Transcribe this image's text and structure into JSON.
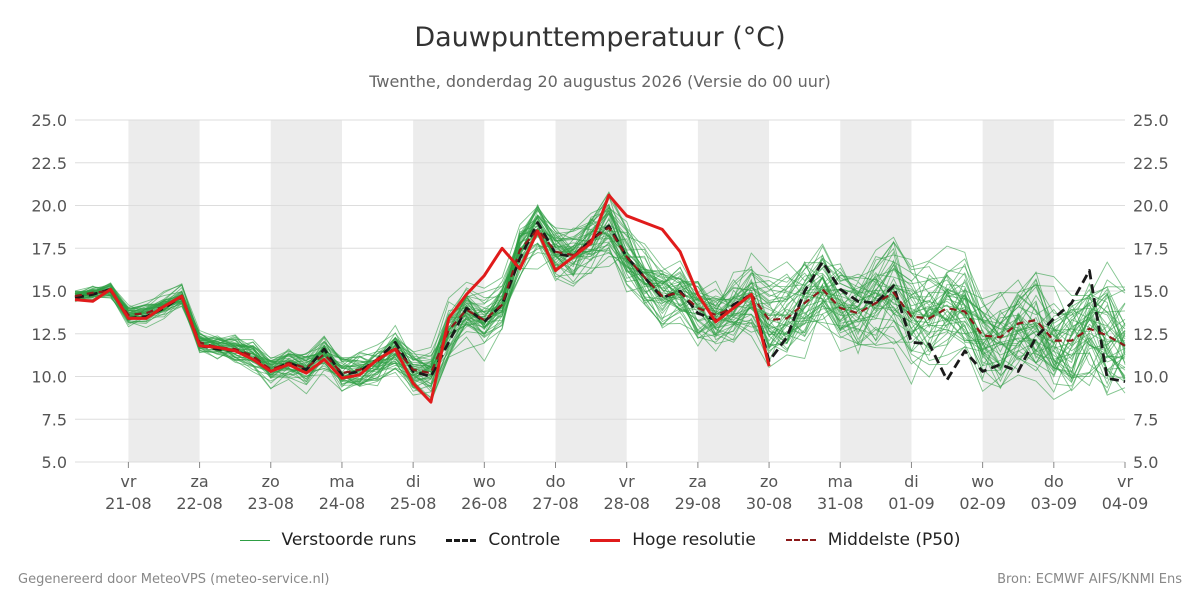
{
  "header": {
    "title": "Dauwpunttemperatuur (°C)",
    "subtitle": "Twenthe, donderdag 20 augustus 2026 (Versie do 00 uur)"
  },
  "footer": {
    "left": "Gegenereerd door MeteoVPS (meteo-service.nl)",
    "right": "Bron: ECMWF AIFS/KNMI Ens"
  },
  "colors": {
    "ensemble": "#2e9e44",
    "control": "#1a1a1a",
    "hires": "#e01b1b",
    "median": "#8b1a1a",
    "weekend_band": "#ececec",
    "grid": "#dddddd"
  },
  "legend": [
    {
      "label": "Verstoorde runs",
      "series": "ensemble"
    },
    {
      "label": "Controle",
      "series": "control"
    },
    {
      "label": "Hoge resolutie",
      "series": "hires"
    },
    {
      "label": "Middelste (P50)",
      "series": "median"
    }
  ],
  "chart_data": {
    "type": "line",
    "ylim": [
      5,
      25
    ],
    "yticks": [
      "5.0",
      "7.5",
      "10.0",
      "12.5",
      "15.0",
      "17.5",
      "20.0",
      "22.5",
      "25.0"
    ],
    "xlim_days": [
      -0.75,
      14.0
    ],
    "x_ticks": [
      {
        "day": "vr",
        "date": "21-08"
      },
      {
        "day": "za",
        "date": "22-08"
      },
      {
        "day": "zo",
        "date": "23-08"
      },
      {
        "day": "ma",
        "date": "24-08"
      },
      {
        "day": "di",
        "date": "25-08"
      },
      {
        "day": "wo",
        "date": "26-08"
      },
      {
        "day": "do",
        "date": "27-08"
      },
      {
        "day": "vr",
        "date": "28-08"
      },
      {
        "day": "za",
        "date": "29-08"
      },
      {
        "day": "zo",
        "date": "30-08"
      },
      {
        "day": "ma",
        "date": "31-08"
      },
      {
        "day": "di",
        "date": "01-09"
      },
      {
        "day": "wo",
        "date": "02-09"
      },
      {
        "day": "do",
        "date": "03-09"
      },
      {
        "day": "vr",
        "date": "04-09"
      }
    ],
    "shaded_days": [
      "21-08",
      "23-08",
      "25-08",
      "27-08",
      "29-08",
      "31-08",
      "02-09"
    ],
    "grid": true,
    "legend_position": "bottom",
    "series": [
      {
        "name": "Controle",
        "key": "control",
        "style": "dashed",
        "x": [
          -0.75,
          -0.5,
          -0.25,
          0,
          0.25,
          0.5,
          0.75,
          1,
          1.25,
          1.5,
          1.75,
          2,
          2.25,
          2.5,
          2.75,
          3,
          3.25,
          3.5,
          3.75,
          4,
          4.25,
          4.5,
          4.75,
          5,
          5.25,
          5.5,
          5.75,
          6,
          6.25,
          6.5,
          6.75,
          7,
          7.25,
          7.5,
          7.75,
          8,
          8.25,
          8.5,
          8.75,
          9,
          9.25,
          9.5,
          9.75,
          10,
          10.25,
          10.5,
          10.75,
          11,
          11.25,
          11.5,
          11.75,
          12,
          12.25,
          12.5,
          12.75,
          13,
          13.25,
          13.5,
          13.75,
          14
        ],
        "values": [
          14.6,
          14.8,
          15.1,
          13.4,
          13.5,
          14.0,
          14.7,
          11.8,
          11.6,
          11.5,
          11.1,
          10.3,
          10.8,
          10.4,
          11.6,
          10.1,
          10.3,
          11.0,
          12.0,
          10.3,
          10.0,
          12.0,
          14.0,
          13.2,
          14.2,
          16.9,
          19.0,
          17.2,
          17.0,
          18.0,
          18.8,
          17.0,
          15.8,
          14.6,
          15.0,
          13.7,
          13.3,
          14.2,
          14.8,
          10.9,
          12.3,
          15.0,
          16.7,
          15.1,
          14.4,
          14.3,
          15.3,
          12.0,
          11.9,
          9.8,
          11.5,
          10.3,
          10.7,
          10.3,
          12.3,
          13.4,
          14.3,
          16.2,
          9.9,
          9.7
        ]
      },
      {
        "name": "Hoge resolutie",
        "key": "hires",
        "style": "solid",
        "x": [
          -0.75,
          -0.5,
          -0.25,
          0,
          0.25,
          0.5,
          0.75,
          1,
          1.25,
          1.5,
          1.75,
          2,
          2.25,
          2.5,
          2.75,
          3,
          3.25,
          3.5,
          3.75,
          4,
          4.25,
          4.5,
          4.75,
          5,
          5.25,
          5.5,
          5.75,
          6,
          6.25,
          6.5,
          6.75,
          7,
          7.25,
          7.5,
          7.75,
          8,
          8.25,
          8.5,
          8.75,
          9
        ],
        "values": [
          14.5,
          14.4,
          15.1,
          13.4,
          13.4,
          14.1,
          14.7,
          11.8,
          11.7,
          11.5,
          11.0,
          10.3,
          10.7,
          10.2,
          11.0,
          9.9,
          10.1,
          11.0,
          11.6,
          9.6,
          8.5,
          13.4,
          14.8,
          15.9,
          17.5,
          16.3,
          18.5,
          16.2,
          17.0,
          17.8,
          20.6,
          19.4,
          19.0,
          18.6,
          17.3,
          14.8,
          13.2,
          14.0,
          14.8,
          10.6
        ]
      },
      {
        "name": "Middelste (P50)",
        "key": "median",
        "style": "dashed",
        "x": [
          -0.75,
          -0.5,
          -0.25,
          0,
          0.25,
          0.5,
          0.75,
          1,
          1.25,
          1.5,
          1.75,
          2,
          2.25,
          2.5,
          2.75,
          3,
          3.25,
          3.5,
          3.75,
          4,
          4.25,
          4.5,
          4.75,
          5,
          5.25,
          5.5,
          5.75,
          6,
          6.25,
          6.5,
          6.75,
          7,
          7.25,
          7.5,
          7.75,
          8,
          8.25,
          8.5,
          8.75,
          9,
          9.25,
          9.5,
          9.75,
          10,
          10.25,
          10.5,
          10.75,
          11,
          11.25,
          11.5,
          11.75,
          12,
          12.25,
          12.5,
          12.75,
          13,
          13.25,
          13.5,
          13.75,
          14
        ],
        "values": [
          14.7,
          14.9,
          15.0,
          13.6,
          13.7,
          14.1,
          14.6,
          12.0,
          11.7,
          11.6,
          11.2,
          10.4,
          10.8,
          10.5,
          11.3,
          10.2,
          10.4,
          10.9,
          11.7,
          10.4,
          10.2,
          12.7,
          13.9,
          13.3,
          14.2,
          17.4,
          18.6,
          17.3,
          17.1,
          18.0,
          18.7,
          17.0,
          15.8,
          14.7,
          14.9,
          14.0,
          13.6,
          14.0,
          14.8,
          13.3,
          13.4,
          14.3,
          15.1,
          14.0,
          13.7,
          14.3,
          14.9,
          13.5,
          13.4,
          14.0,
          13.8,
          12.4,
          12.3,
          13.1,
          13.3,
          12.1,
          12.1,
          12.8,
          12.4,
          11.8
        ]
      }
    ]
  }
}
